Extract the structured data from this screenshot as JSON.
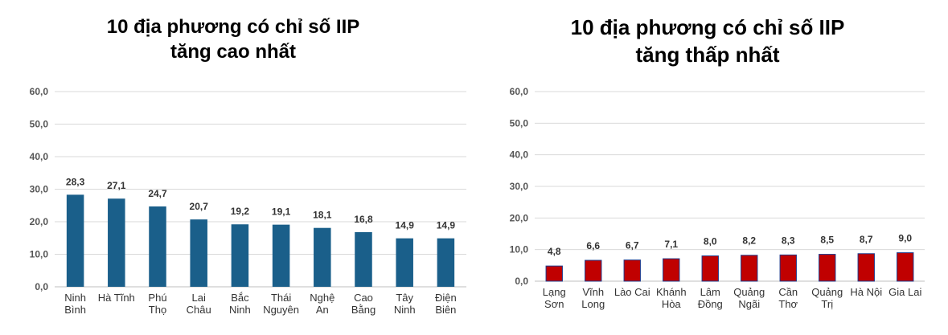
{
  "chart_data": [
    {
      "type": "bar",
      "title": [
        "10 địa phương có chỉ số IIP",
        "tăng cao nhất"
      ],
      "categories": [
        [
          "Ninh",
          "Bình"
        ],
        [
          "Hà Tĩnh"
        ],
        [
          "Phú",
          "Thọ"
        ],
        [
          "Lai",
          "Châu"
        ],
        [
          "Bắc",
          "Ninh"
        ],
        [
          "Thái",
          "Nguyên"
        ],
        [
          "Nghệ",
          "An"
        ],
        [
          "Cao",
          "Bằng"
        ],
        [
          "Tây",
          "Ninh"
        ],
        [
          "Điện",
          "Biên"
        ]
      ],
      "values": [
        28.3,
        27.1,
        24.7,
        20.7,
        19.2,
        19.1,
        18.1,
        16.8,
        14.9,
        14.9
      ],
      "value_labels": [
        "28,3",
        "27,1",
        "24,7",
        "20,7",
        "19,2",
        "19,1",
        "18,1",
        "16,8",
        "14,9",
        "14,9"
      ],
      "ylim": [
        0,
        60
      ],
      "yticks": [
        "0,0",
        "10,0",
        "20,0",
        "30,0",
        "40,0",
        "50,0",
        "60,0"
      ],
      "grid": true,
      "bar_color": "#1a5f8a"
    },
    {
      "type": "bar",
      "title": [
        "10 địa phương có chỉ số IIP",
        "tăng thấp nhất"
      ],
      "categories": [
        [
          "Lạng",
          "Sơn"
        ],
        [
          "Vĩnh",
          "Long"
        ],
        [
          "Lào Cai"
        ],
        [
          "Khánh",
          "Hòa"
        ],
        [
          "Lâm",
          "Đồng"
        ],
        [
          "Quảng",
          "Ngãi"
        ],
        [
          "Cần",
          "Thơ"
        ],
        [
          "Quảng",
          "Trị"
        ],
        [
          "Hà Nội"
        ],
        [
          "Gia Lai"
        ]
      ],
      "values": [
        4.8,
        6.6,
        6.7,
        7.1,
        8.0,
        8.2,
        8.3,
        8.5,
        8.7,
        9.0
      ],
      "value_labels": [
        "4,8",
        "6,6",
        "6,7",
        "7,1",
        "8,0",
        "8,2",
        "8,3",
        "8,5",
        "8,7",
        "9,0"
      ],
      "ylim": [
        0,
        60
      ],
      "yticks": [
        "0,0",
        "10,0",
        "20,0",
        "30,0",
        "40,0",
        "50,0",
        "60,0"
      ],
      "grid": true,
      "bar_color": "#c00000",
      "bar_edge_color": "#1f3a8a"
    }
  ]
}
